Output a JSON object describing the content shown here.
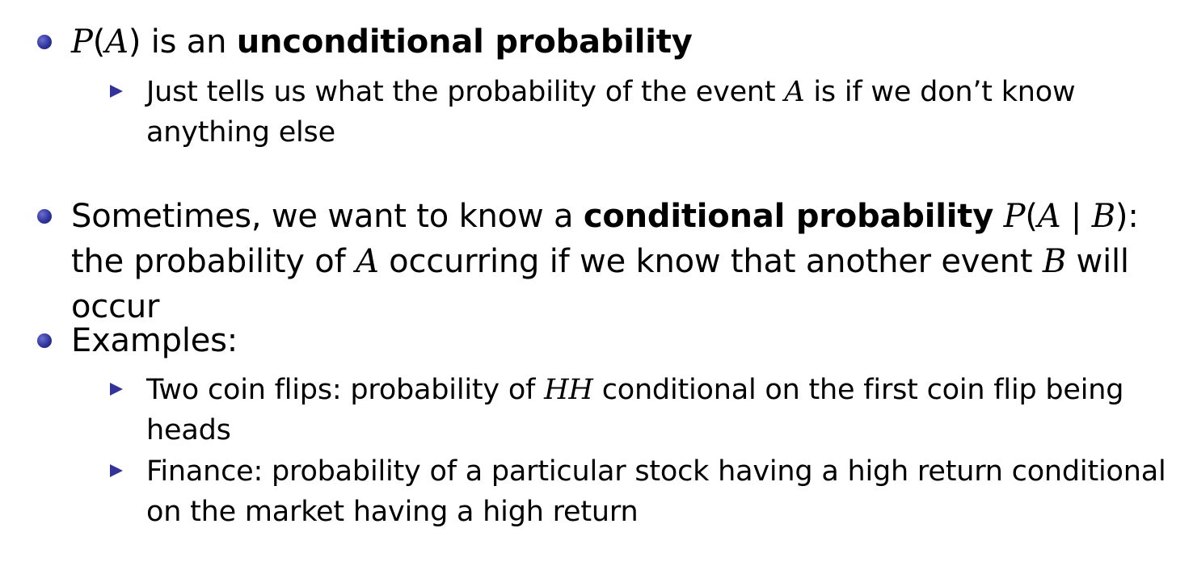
{
  "bullets": [
    {
      "math_P": "P",
      "math_A": "A",
      "text_is_an": " is an ",
      "bold": "unconditional probability",
      "subs": [
        {
          "pre": "Just tells us what the probability of the event ",
          "math": "A",
          "post": " is if we don’t know anything else"
        }
      ]
    },
    {
      "pre": "Sometimes, we want to know a ",
      "bold": "conditional probability",
      "math_P": "P",
      "math_A": "A",
      "bar": " | ",
      "math_B": "B",
      "colon_text": ": the probability of ",
      "math_A2": "A",
      "mid": " occurring if we know that another event ",
      "math_B2": "B",
      "end": " will occur"
    },
    {
      "text": "Examples:",
      "subs": [
        {
          "pre": "Two coin flips: probability of ",
          "math": "HH",
          "post": " conditional on the first coin flip being heads"
        },
        {
          "text": "Finance: probability of a particular stock having a high return conditional on the market having a high return"
        }
      ]
    }
  ]
}
